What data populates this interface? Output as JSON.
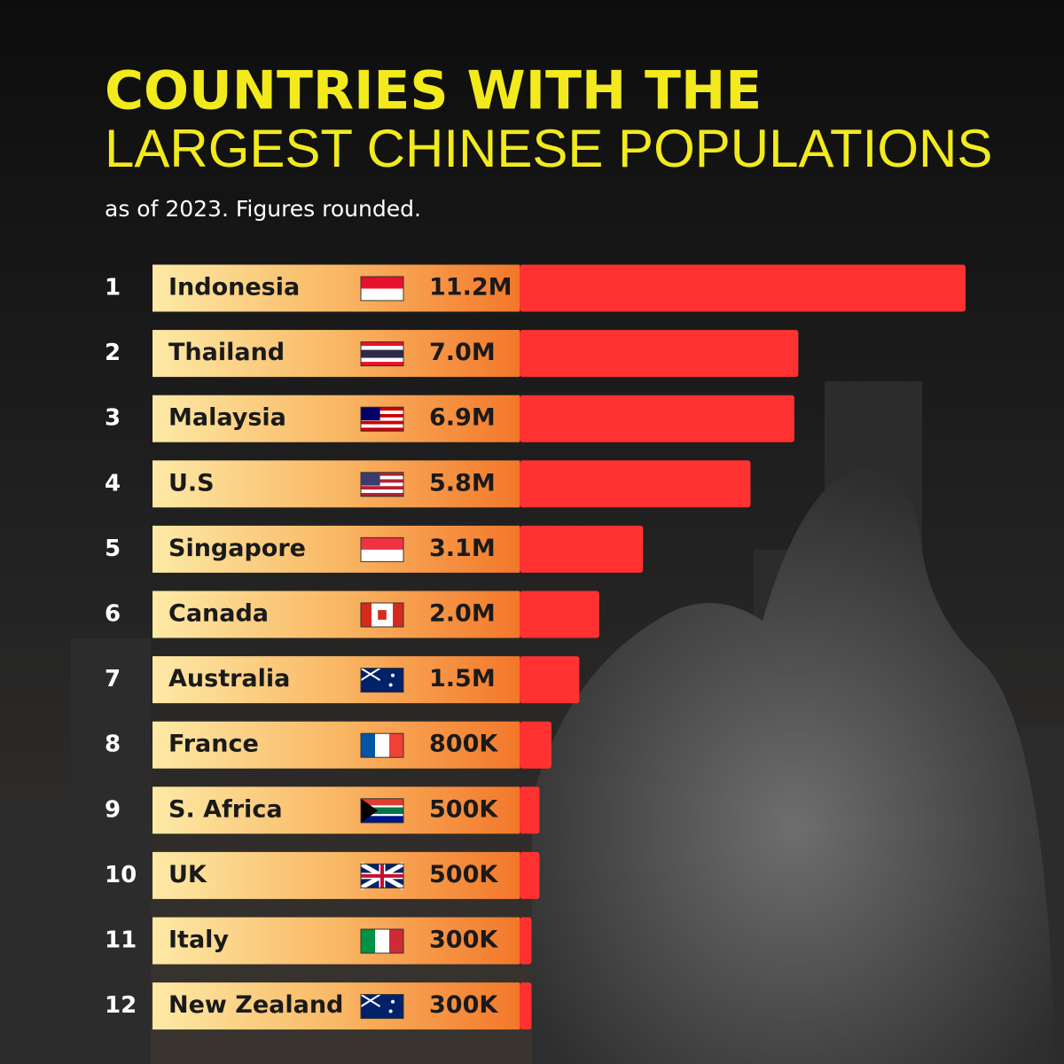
{
  "chart_data": {
    "type": "bar",
    "title": "COUNTRIES WITH THE",
    "subtitle": "LARGEST CHINESE POPULATIONS",
    "note": "as of 2023. Figures rounded.",
    "ranks": [
      1,
      2,
      3,
      4,
      5,
      6,
      7,
      8,
      9,
      10,
      11,
      12
    ],
    "categories": [
      "Indonesia",
      "Thailand",
      "Malaysia",
      "U.S",
      "Singapore",
      "Canada",
      "Australia",
      "France",
      "S. Africa",
      "UK",
      "Italy",
      "New Zealand"
    ],
    "values": [
      11200000,
      7000000,
      6900000,
      5800000,
      3100000,
      2000000,
      1500000,
      800000,
      500000,
      500000,
      300000,
      300000
    ],
    "value_labels": [
      "11.2M",
      "7.0M",
      "6.9M",
      "5.8M",
      "3.1M",
      "2.0M",
      "1.5M",
      "800K",
      "500K",
      "500K",
      "300K",
      "300K"
    ],
    "color": "#ff3131"
  }
}
